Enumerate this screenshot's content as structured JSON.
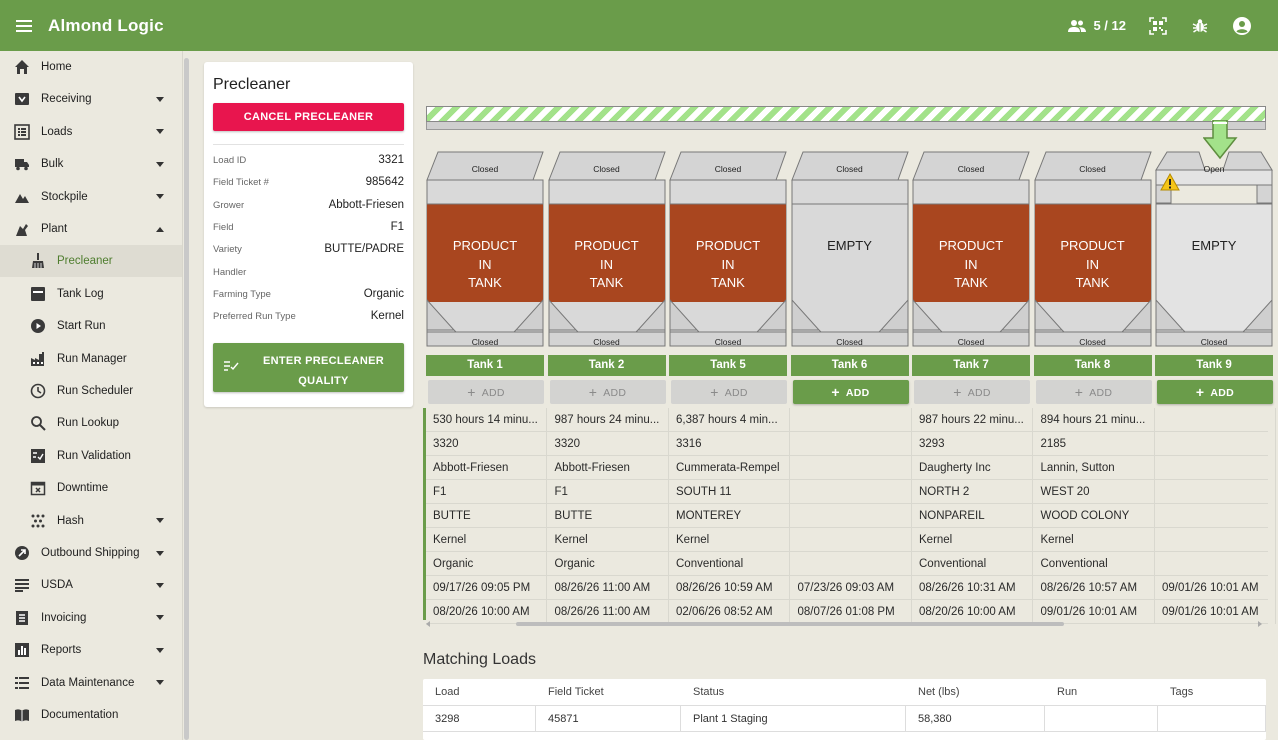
{
  "app": {
    "title": "Almond Logic",
    "users_count": "5 / 12",
    "colors": {
      "primary": "#6a9c4a",
      "danger": "#e8154e",
      "product": "#a9461f",
      "empty": "#d9d9d9",
      "hazard_stripe": "#a3e28a"
    }
  },
  "sidebar": {
    "items": [
      {
        "label": "Home",
        "icon": "home-icon",
        "caret": false
      },
      {
        "label": "Receiving",
        "icon": "receiving-icon",
        "caret": true
      },
      {
        "label": "Loads",
        "icon": "list-icon",
        "caret": true
      },
      {
        "label": "Bulk",
        "icon": "truck-icon",
        "caret": true
      },
      {
        "label": "Stockpile",
        "icon": "terrain-icon",
        "caret": true
      },
      {
        "label": "Plant",
        "icon": "plant-icon",
        "caret": true,
        "expanded": true
      },
      {
        "label": "Outbound Shipping",
        "icon": "shipping-icon",
        "caret": true
      },
      {
        "label": "USDA",
        "icon": "usda-icon",
        "caret": true
      },
      {
        "label": "Invoicing",
        "icon": "invoice-icon",
        "caret": true
      },
      {
        "label": "Reports",
        "icon": "reports-icon",
        "caret": true
      },
      {
        "label": "Data Maintenance",
        "icon": "data-icon",
        "caret": true
      },
      {
        "label": "Documentation",
        "icon": "book-icon",
        "caret": false
      }
    ],
    "plant_subitems": [
      {
        "label": "Precleaner",
        "icon": "broom-icon",
        "active": true
      },
      {
        "label": "Tank Log",
        "icon": "tank-log-icon"
      },
      {
        "label": "Start Run",
        "icon": "play-circle-icon"
      },
      {
        "label": "Run Manager",
        "icon": "factory-icon"
      },
      {
        "label": "Run Scheduler",
        "icon": "clock-icon"
      },
      {
        "label": "Run Lookup",
        "icon": "magnify-icon"
      },
      {
        "label": "Run Validation",
        "icon": "checklist-icon"
      },
      {
        "label": "Downtime",
        "icon": "calendar-x-icon"
      },
      {
        "label": "Hash",
        "icon": "hash-dots-icon",
        "caret": true
      }
    ]
  },
  "precleaner": {
    "title": "Precleaner",
    "cancel_label": "CANCEL PRECLEANER",
    "fields": [
      {
        "label": "Load ID",
        "value": "3321"
      },
      {
        "label": "Field Ticket #",
        "value": "985642"
      },
      {
        "label": "Grower",
        "value": "Abbott-Friesen"
      },
      {
        "label": "Field",
        "value": "F1"
      },
      {
        "label": "Variety",
        "value": "BUTTE/PADRE"
      },
      {
        "label": "Handler",
        "value": ""
      },
      {
        "label": "Farming Type",
        "value": "Organic"
      },
      {
        "label": "Preferred Run Type",
        "value": "Kernel"
      }
    ],
    "quality_label": "ENTER PRECLEANER QUALITY"
  },
  "tanks": [
    {
      "name": "Tank 1",
      "top_gate": "Closed",
      "bottom_gate": "Closed",
      "status": "PRODUCT\nIN\nTANK",
      "filled": true,
      "add_label": "ADD",
      "add_enabled": false
    },
    {
      "name": "Tank 2",
      "top_gate": "Closed",
      "bottom_gate": "Closed",
      "status": "PRODUCT\nIN\nTANK",
      "filled": true,
      "add_label": "ADD",
      "add_enabled": false
    },
    {
      "name": "Tank 5",
      "top_gate": "Closed",
      "bottom_gate": "Closed",
      "status": "PRODUCT\nIN\nTANK",
      "filled": true,
      "add_label": "ADD",
      "add_enabled": false
    },
    {
      "name": "Tank 6",
      "top_gate": "Closed",
      "bottom_gate": "Closed",
      "status": "EMPTY",
      "filled": false,
      "add_label": "ADD",
      "add_enabled": true
    },
    {
      "name": "Tank 7",
      "top_gate": "Closed",
      "bottom_gate": "Closed",
      "status": "PRODUCT\nIN\nTANK",
      "filled": true,
      "add_label": "ADD",
      "add_enabled": false
    },
    {
      "name": "Tank 8",
      "top_gate": "Closed",
      "bottom_gate": "Closed",
      "status": "PRODUCT\nIN\nTANK",
      "filled": true,
      "add_label": "ADD",
      "add_enabled": false
    },
    {
      "name": "Tank 9",
      "top_gate": "Open",
      "bottom_gate": "Closed",
      "status": "EMPTY",
      "filled": false,
      "add_label": "ADD",
      "add_enabled": true,
      "warning": true
    }
  ],
  "tank_details": [
    [
      "530 hours 14 minu...",
      "987 hours 24 minu...",
      "6,387 hours 4 min...",
      "",
      "987 hours 22 minu...",
      "894 hours 21 minu...",
      ""
    ],
    [
      "3320",
      "3320",
      "3316",
      "",
      "3293",
      "2185",
      ""
    ],
    [
      "Abbott-Friesen",
      "Abbott-Friesen",
      "Cummerata-Rempel",
      "",
      "Daugherty Inc",
      "Lannin, Sutton",
      ""
    ],
    [
      "F1",
      "F1",
      "SOUTH 11",
      "",
      "NORTH 2",
      "WEST 20",
      ""
    ],
    [
      "BUTTE",
      "BUTTE",
      "MONTEREY",
      "",
      "NONPAREIL",
      "WOOD COLONY",
      ""
    ],
    [
      "Kernel",
      "Kernel",
      "Kernel",
      "",
      "Kernel",
      "Kernel",
      ""
    ],
    [
      "Organic",
      "Organic",
      "Conventional",
      "",
      "Conventional",
      "Conventional",
      ""
    ],
    [
      "09/17/26 09:05 PM",
      "08/26/26 11:00 AM",
      "08/26/26 10:59 AM",
      "07/23/26 09:03 AM",
      "08/26/26 10:31 AM",
      "08/26/26 10:57 AM",
      "09/01/26 10:01 AM"
    ],
    [
      "08/20/26 10:00 AM",
      "08/26/26 11:00 AM",
      "02/06/26 08:52 AM",
      "08/07/26 01:08 PM",
      "08/20/26 10:00 AM",
      "09/01/26 10:01 AM",
      "09/01/26 10:01 AM"
    ]
  ],
  "matching_loads": {
    "title": "Matching Loads",
    "columns": [
      "Load",
      "Field Ticket",
      "Status",
      "Net (lbs)",
      "Run",
      "Tags"
    ],
    "rows": [
      [
        "3298",
        "45871",
        "Plant 1 Staging",
        "58,380",
        "",
        ""
      ]
    ]
  }
}
